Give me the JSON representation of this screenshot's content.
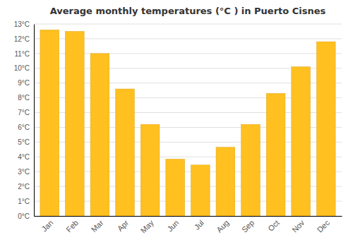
{
  "chart_data": {
    "type": "bar",
    "title": "Average monthly temperatures (°C ) in Puerto Cisnes",
    "categories": [
      "Jan",
      "Feb",
      "Mar",
      "Apr",
      "May",
      "Jun",
      "Jul",
      "Aug",
      "Sep",
      "Oct",
      "Nov",
      "Dec"
    ],
    "values": [
      12.6,
      12.5,
      11.0,
      8.6,
      6.2,
      3.85,
      3.45,
      4.65,
      6.2,
      8.3,
      10.1,
      11.8
    ],
    "color": "#FFC020",
    "ylim": [
      0,
      13
    ],
    "yticks": [
      {
        "value": 0,
        "label": "0°C"
      },
      {
        "value": 1,
        "label": "1°C"
      },
      {
        "value": 2,
        "label": "2°C"
      },
      {
        "value": 3,
        "label": "3°C"
      },
      {
        "value": 4,
        "label": "4°C"
      },
      {
        "value": 5,
        "label": "5°C"
      },
      {
        "value": 6,
        "label": "6°C"
      },
      {
        "value": 7,
        "label": "7°C"
      },
      {
        "value": 8,
        "label": "8°C"
      },
      {
        "value": 9,
        "label": "9°C"
      },
      {
        "value": 10,
        "label": "10°C"
      },
      {
        "value": 11,
        "label": "11°C"
      },
      {
        "value": 12,
        "label": "12°C"
      },
      {
        "value": 13,
        "label": "13°C"
      }
    ],
    "grid": true
  }
}
